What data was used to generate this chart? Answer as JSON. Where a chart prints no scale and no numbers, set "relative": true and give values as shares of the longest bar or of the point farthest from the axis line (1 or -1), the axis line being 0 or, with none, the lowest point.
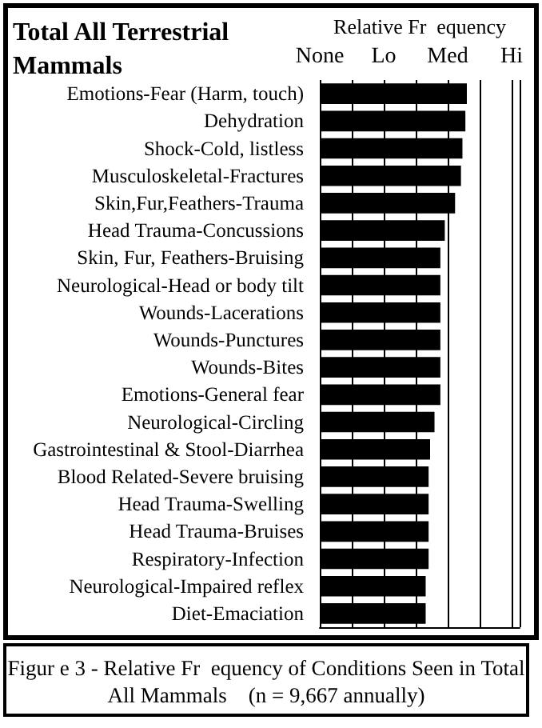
{
  "chart_data": {
    "type": "bar",
    "orientation": "horizontal",
    "relative": true,
    "title": "Total All Terrestrial Mammals",
    "xlabel": "Relative Fr  equency",
    "annotations": [
      "None",
      "Lo",
      "Med",
      "Hi",
      "Figur e 3 - Relative Fr  equency of Conditions Seen in Total  All Mammals    (n = 9,667 annually)"
    ],
    "categories": [
      "Emotions-Fear (Harm, touch)",
      "Dehydration",
      "Shock-Cold, listless",
      "Musculoskeletal-Fractures",
      "Skin,Fur,Feathers-Trauma",
      "Head Trauma-Concussions",
      "Skin, Fur, Feathers-Bruising",
      "Neurological-Head or body tilt",
      "Wounds-Lacerations",
      "Wounds-Punctures",
      "Wounds-Bites",
      "Emotions-General fear",
      "Neurological-Circling",
      "Gastrointestinal & Stool-Diarrhea",
      "Blood Related-Severe bruising",
      "Head Trauma-Swelling",
      "Head Trauma-Bruises",
      "Respiratory-Infection",
      "Neurological-Impaired reflex",
      "Diet-Emaciation"
    ],
    "values": [
      1,
      0.99,
      0.97,
      0.96,
      0.92,
      0.85,
      0.82,
      0.82,
      0.82,
      0.82,
      0.82,
      0.82,
      0.78,
      0.75,
      0.74,
      0.74,
      0.74,
      0.74,
      0.72,
      0.72
    ],
    "color": "#000000",
    "grid": "x"
  }
}
